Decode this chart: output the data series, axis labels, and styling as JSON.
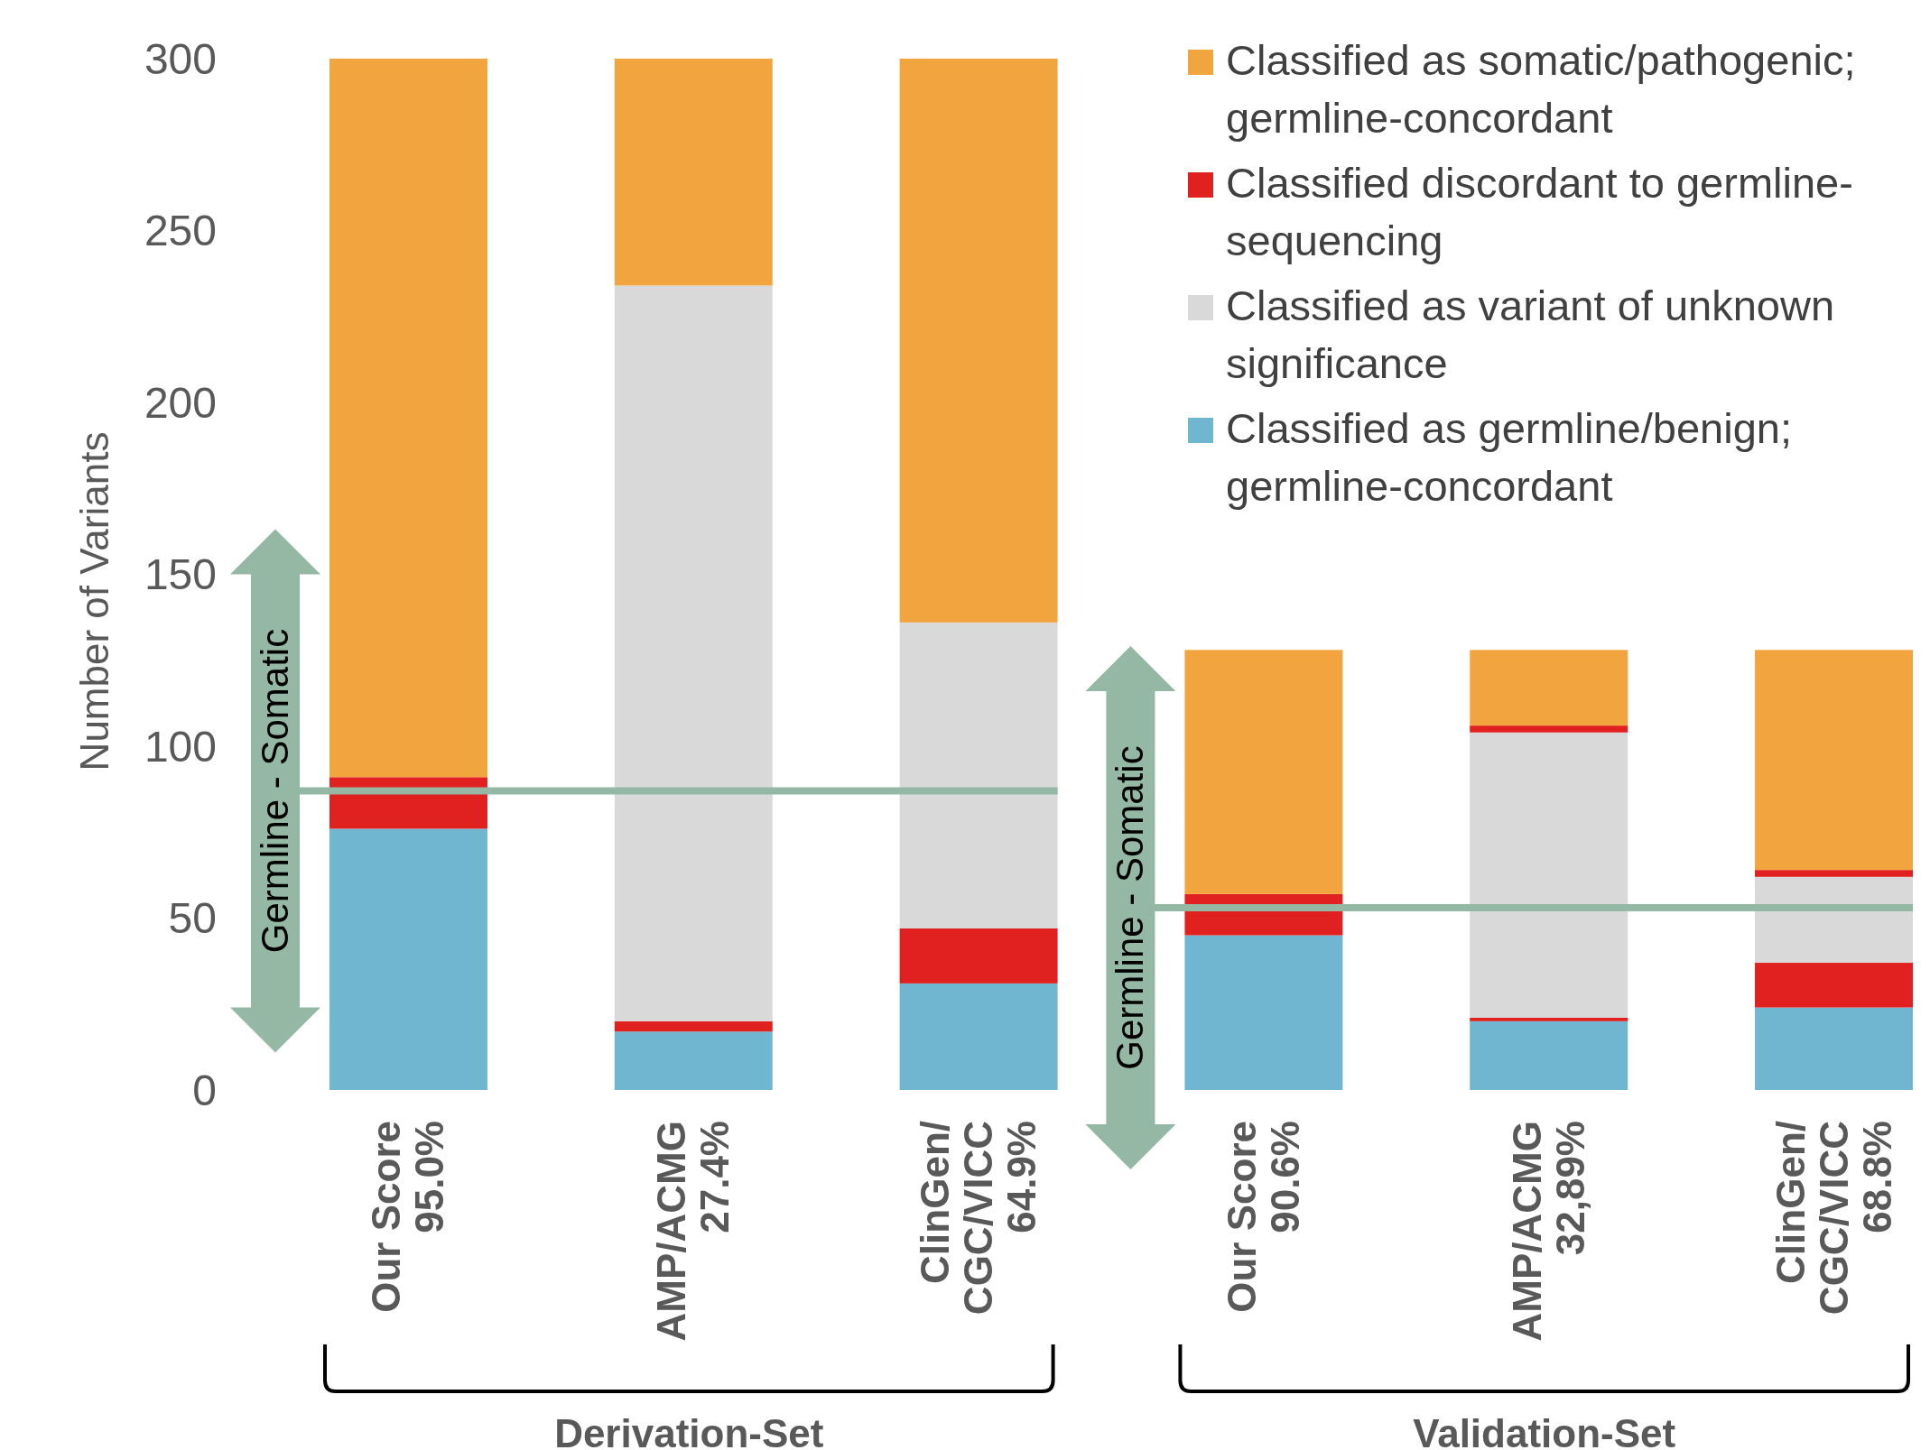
{
  "chart_data": {
    "type": "bar",
    "stacked": true,
    "ylabel": "Number of Variants",
    "categories": [
      "Our Score\n95.0%",
      "AMP/ACMG\n27.4%",
      "ClinGen/\nCGC/VICC\n64.9%",
      "Our Score\n90.6%",
      "AMP/ACMG\n32,89%",
      "ClinGen/\nCGC/VICC\n68.8%"
    ],
    "series": [
      {
        "name": "Classified as germline/benign; germline-concordant",
        "color": "#70b6d0",
        "values": [
          76,
          17,
          31,
          45,
          20,
          24
        ]
      },
      {
        "color": "#e0211f",
        "values": [
          15,
          3,
          16,
          12,
          1,
          13
        ]
      },
      {
        "name": "Classified as variant of unknown significance",
        "color": "#d9d9d9",
        "values": [
          0,
          214,
          89,
          0,
          83,
          25
        ]
      },
      {
        "name": "Classified discordant to germline-sequencing",
        "color": "#e0211f",
        "values": [
          0,
          0,
          0,
          0,
          2,
          2
        ]
      },
      {
        "name": "Classified as somatic/pathogenic; germline-concordant",
        "color": "#f2a53f",
        "values": [
          209,
          66,
          164,
          71,
          22,
          64
        ]
      }
    ],
    "ylim": [
      0,
      300
    ],
    "yticks": [
      0,
      50,
      100,
      150,
      200,
      250,
      300
    ],
    "grid": false,
    "legend": "top right",
    "ref_lines": [
      {
        "axis": "y",
        "value": 87,
        "label": "Germline - Somatic",
        "color": "#95b8a5"
      },
      {
        "axis": "y",
        "value": 53,
        "label": "Germline - Somatic",
        "color": "#95b8a5"
      }
    ],
    "annotations": [
      "Derivation-Set",
      "Validation-Set"
    ]
  }
}
